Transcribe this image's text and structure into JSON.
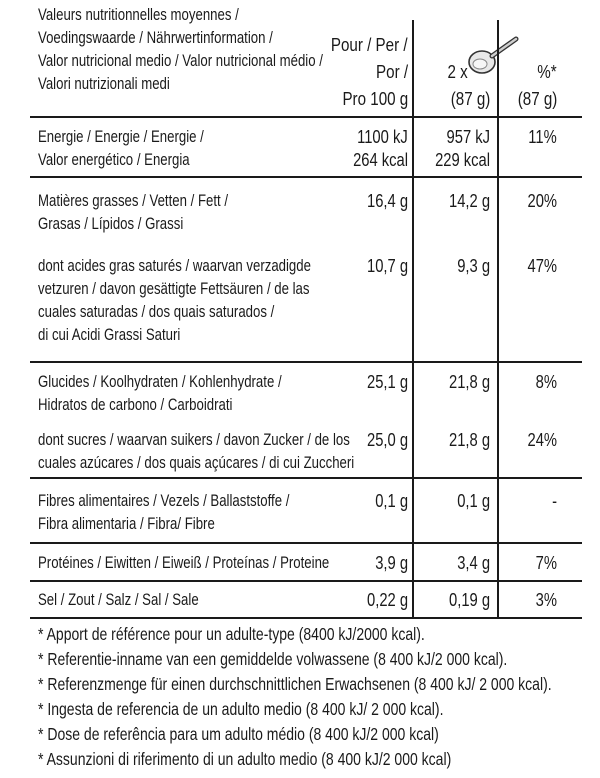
{
  "header": {
    "lines": [
      "Valeurs nutritionnelles moyennes /",
      "Voedingswaarde / Nährwertinformation /",
      "Valor nutricional medio / Valor nutricional médio /",
      "Valori nutrizionali medi"
    ],
    "per100_lines": [
      "Pour / Per /",
      "Por /",
      "Pro 100 g"
    ],
    "portion_prefix": "2 x",
    "portion_amount": "(87 g)",
    "pct_label": "%*",
    "pct_amount": "(87 g)",
    "portion_icon": "spoon-icon"
  },
  "rows": [
    {
      "label_lines": [
        "Energie / Energie / Energie /",
        "Valor energético / Energia"
      ],
      "per100": [
        "1100 kJ",
        "264 kcal"
      ],
      "portion": [
        "957 kJ",
        "229 kcal"
      ],
      "pct": "11%"
    },
    {
      "label_lines": [
        "Matières grasses / Vetten / Fett /",
        "Grasas / Lípidos / Grassi"
      ],
      "per100": "16,4 g",
      "portion": "14,2 g",
      "pct": "20%"
    },
    {
      "label_lines": [
        "dont acides gras saturés / waarvan verzadigde",
        "vetzuren / davon gesättigte Fettsäuren / de las",
        "cuales saturadas / dos quais saturados /",
        "di cui Acidi Grassi Saturi"
      ],
      "per100": "10,7 g",
      "portion": "9,3 g",
      "pct": "47%"
    },
    {
      "label_lines": [
        "Glucides / Koolhydraten / Kohlenhydrate /",
        "Hidratos de carbono / Carboidrati"
      ],
      "per100": "25,1 g",
      "portion": "21,8 g",
      "pct": "8%"
    },
    {
      "label_lines": [
        "dont sucres / waarvan suikers / davon Zucker / de los",
        "cuales azúcares / dos quais açúcares / di cui Zuccheri"
      ],
      "per100": "25,0 g",
      "portion": "21,8 g",
      "pct": "24%"
    },
    {
      "label_lines": [
        "Fibres alimentaires / Vezels / Ballaststoffe /",
        "Fibra alimentaria / Fibra/ Fibre"
      ],
      "per100": "0,1 g",
      "portion": "0,1 g",
      "pct": "-"
    },
    {
      "label_lines": [
        "Protéines / Eiwitten / Eiweiß / Proteínas / Proteine"
      ],
      "per100": "3,9 g",
      "portion": "3,4 g",
      "pct": "7%"
    },
    {
      "label_lines": [
        "Sel / Zout / Salz / Sal / Sale"
      ],
      "per100": "0,22 g",
      "portion": "0,19 g",
      "pct": "3%"
    }
  ],
  "footnotes": [
    "* Apport de référence pour un adulte-type (8400 kJ/2000 kcal).",
    "* Referentie-inname van een gemiddelde volwassene (8 400 kJ/2 000 kcal).",
    "* Referenzmenge für einen durchschnittlichen Erwachsenen (8 400 kJ/ 2 000 kcal).",
    "* Ingesta de referencia de un adulto medio (8 400 kJ/ 2 000 kcal).",
    "* Dose de referência para um adulto médio (8 400 kJ/2 000 kcal)",
    "* Assunzioni di riferimento di un adulto medio (8 400 kJ/2 000 kcal)"
  ]
}
